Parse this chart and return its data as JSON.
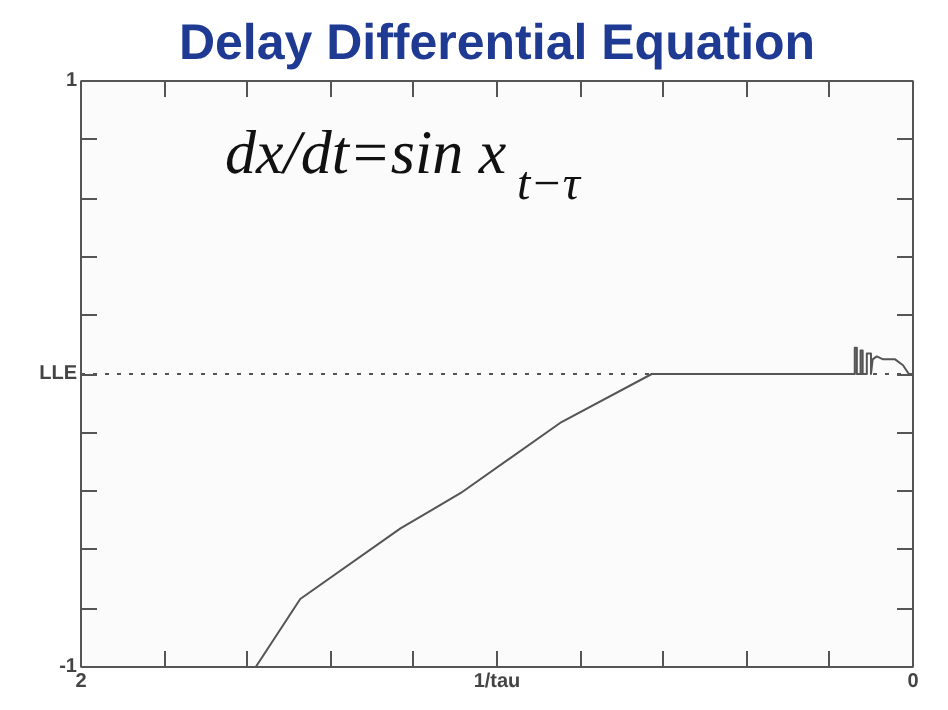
{
  "chart_data": {
    "type": "line",
    "title": "Delay Differential Equation",
    "annotations": [
      "dx/dt=sin x$_{t−τ}$"
    ],
    "xlim": [
      2,
      0
    ],
    "ylim": [
      -1,
      1
    ],
    "xticks": [
      {
        "value": 2,
        "label": "2"
      },
      {
        "value": 1.8,
        "label": null
      },
      {
        "value": 1.6,
        "label": null
      },
      {
        "value": 1.4,
        "label": null
      },
      {
        "value": 1.2,
        "label": null
      },
      {
        "value": 1,
        "label": "1/tau"
      },
      {
        "value": 0.8,
        "label": null
      },
      {
        "value": 0.6,
        "label": null
      },
      {
        "value": 0.4,
        "label": null
      },
      {
        "value": 0.2,
        "label": null
      },
      {
        "value": 0,
        "label": "0"
      }
    ],
    "yticks": [
      {
        "value": -1,
        "label": "-1"
      },
      {
        "value": -0.8,
        "label": null
      },
      {
        "value": -0.6,
        "label": null
      },
      {
        "value": -0.4,
        "label": null
      },
      {
        "value": -0.2,
        "label": null
      },
      {
        "value": 0,
        "label": "LLE"
      },
      {
        "value": 0.2,
        "label": null
      },
      {
        "value": 0.4,
        "label": null
      },
      {
        "value": 0.6,
        "label": null
      },
      {
        "value": 0.8,
        "label": null
      },
      {
        "value": 1,
        "label": "1"
      }
    ],
    "grid": false,
    "marker": "none",
    "line_style": "solid",
    "ref_lines": [
      {
        "axis": "y",
        "value": 0,
        "line_style": "dotted",
        "color": "#555555"
      }
    ],
    "series": [
      {
        "color": "#555555",
        "x": [
          1.58,
          1.473,
          1.232,
          1.087,
          0.845,
          0.628,
          0.4,
          0.2,
          0.14,
          0.14,
          0.135,
          0.135,
          0.126,
          0.126,
          0.121,
          0.121,
          0.111,
          0.111,
          0.101,
          0.101,
          0.097,
          0.087,
          0.072,
          0.043,
          0.024,
          0.01,
          0.0
        ],
        "values": [
          -1,
          -0.768,
          -0.527,
          -0.406,
          -0.164,
          0,
          0,
          0,
          0,
          0.09,
          0.09,
          0,
          0,
          0.08,
          0.08,
          0,
          0,
          0.07,
          0.07,
          0,
          0.05,
          0.06,
          0.05,
          0.05,
          0.03,
          0.0,
          0.0
        ]
      }
    ]
  }
}
